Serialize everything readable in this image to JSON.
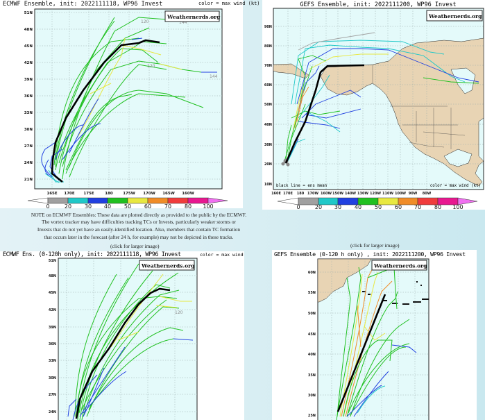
{
  "ecmwf_full": {
    "title": "ECMWF Ensemble, init: 2022111118, WP96 Invest",
    "legend": "color = max wind (kt)",
    "watermark": "Weathernerds.org",
    "lat_ticks": [
      "51N",
      "48N",
      "45N",
      "42N",
      "39N",
      "36N",
      "33N",
      "30N",
      "27N",
      "24N",
      "21N"
    ],
    "lon_ticks": [
      "165E",
      "170E",
      "175E",
      "180",
      "175W",
      "170W",
      "165W",
      "160W"
    ],
    "hour_labels": [
      "120",
      "144",
      "120",
      "144"
    ]
  },
  "gefs_full": {
    "title": "GEFS Ensemble, init: 2022111200, WP96 Invest",
    "watermark": "Weathernerds.org",
    "mean_note": "black line = ens mean",
    "legend": "color = max wind (kt)",
    "lat_ticks": [
      "90N",
      "80N",
      "70N",
      "60N",
      "50N",
      "40N",
      "30N",
      "20N",
      "10N"
    ],
    "lon_ticks": [
      "160E",
      "170E",
      "180",
      "170W",
      "160W",
      "150W",
      "140W",
      "130W",
      "120W",
      "110W",
      "100W",
      "90W",
      "80W"
    ]
  },
  "colorbar": {
    "labels": [
      "0",
      "20",
      "30",
      "40",
      "50",
      "60",
      "70",
      "80",
      "100"
    ],
    "colors": [
      "#a0a0a0",
      "#20c8c8",
      "#2040e0",
      "#20c020",
      "#e8e840",
      "#f08c28",
      "#f03c3c",
      "#e81890"
    ],
    "under_color": "#ffffff",
    "over_color": "#f070f0"
  },
  "note": {
    "lines": [
      "NOTE on ECMWF Ensembles: These data are plotted directly as provided to the public by the ECMWF.",
      "The vortex tracker may have difficulties tracking TCs or Invests, particularly weaker storms or",
      "Invests that do not yet have an easily-identified location. Also, members that contain TC formation",
      "that occurs later in the forecast (after 24 h, for example) may not be depicted in these tracks."
    ]
  },
  "click_label": "(click for larger image)",
  "ecmwf_120": {
    "title": "ECMWF Ens. (0-120h only), init: 2022111118, WP96 Invest",
    "legend": "color = max wind (kt)",
    "watermark": "Weathernerds.org",
    "lat_ticks": [
      "51N",
      "48N",
      "45N",
      "42N",
      "39N",
      "36N",
      "33N",
      "30N",
      "27N",
      "24N"
    ],
    "hour_label": "120"
  },
  "gefs_120": {
    "title": "GEFS Ensemble (0-120 h only) , init: 2022111200, WP96 Invest",
    "watermark": "Weathernerds.org",
    "lat_ticks": [
      "60N",
      "55N",
      "50N",
      "45N",
      "40N",
      "35N",
      "30N",
      "25N"
    ]
  },
  "colors": {
    "map_water": "#e4fafa",
    "land": "#e8d4b4",
    "mean_track": "#000000"
  }
}
